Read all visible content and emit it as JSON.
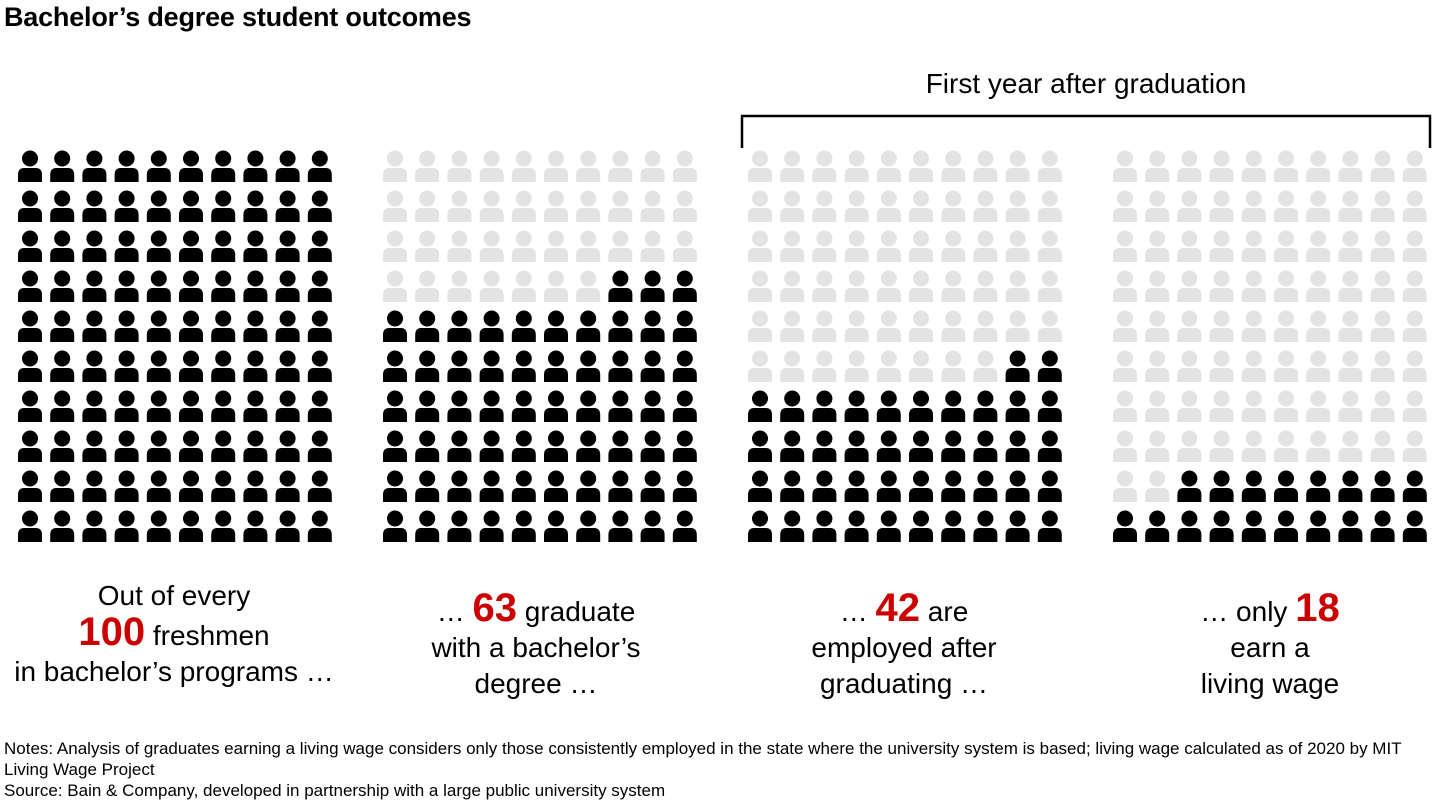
{
  "title": "Bachelor’s degree student outcomes",
  "bracket_label": "First year after graduation",
  "chart_data": {
    "type": "waffle",
    "grid": {
      "rows": 10,
      "cols": 10,
      "fill_order": "bottom-to-top, right-aligned on partial row"
    },
    "colors": {
      "filled": "#000000",
      "empty": "#e3e3e3",
      "highlight": "#cc0000"
    },
    "panels": [
      {
        "value": 100,
        "total": 100,
        "pre": "Out of every",
        "num": "100",
        "post": "freshmen",
        "line3": "in bachelor’s programs …"
      },
      {
        "value": 63,
        "total": 100,
        "pre": "…",
        "num": "63",
        "post": "graduate",
        "line2": "with a bachelor’s",
        "line3": "degree …"
      },
      {
        "value": 42,
        "total": 100,
        "pre": "…",
        "num": "42",
        "post": "are",
        "line2": "employed after",
        "line3": "graduating …"
      },
      {
        "value": 18,
        "total": 100,
        "pre": "… only",
        "num": "18",
        "post": "",
        "line2": "earn a",
        "line3": "living wage"
      }
    ]
  },
  "notes": {
    "line1": "Notes: Analysis of graduates earning a living wage considers only those consistently employed in the state where the university system is based; living wage calculated as of 2020 by MIT Living Wage Project",
    "line2": "Source: Bain & Company, developed in partnership with a large public university system"
  }
}
